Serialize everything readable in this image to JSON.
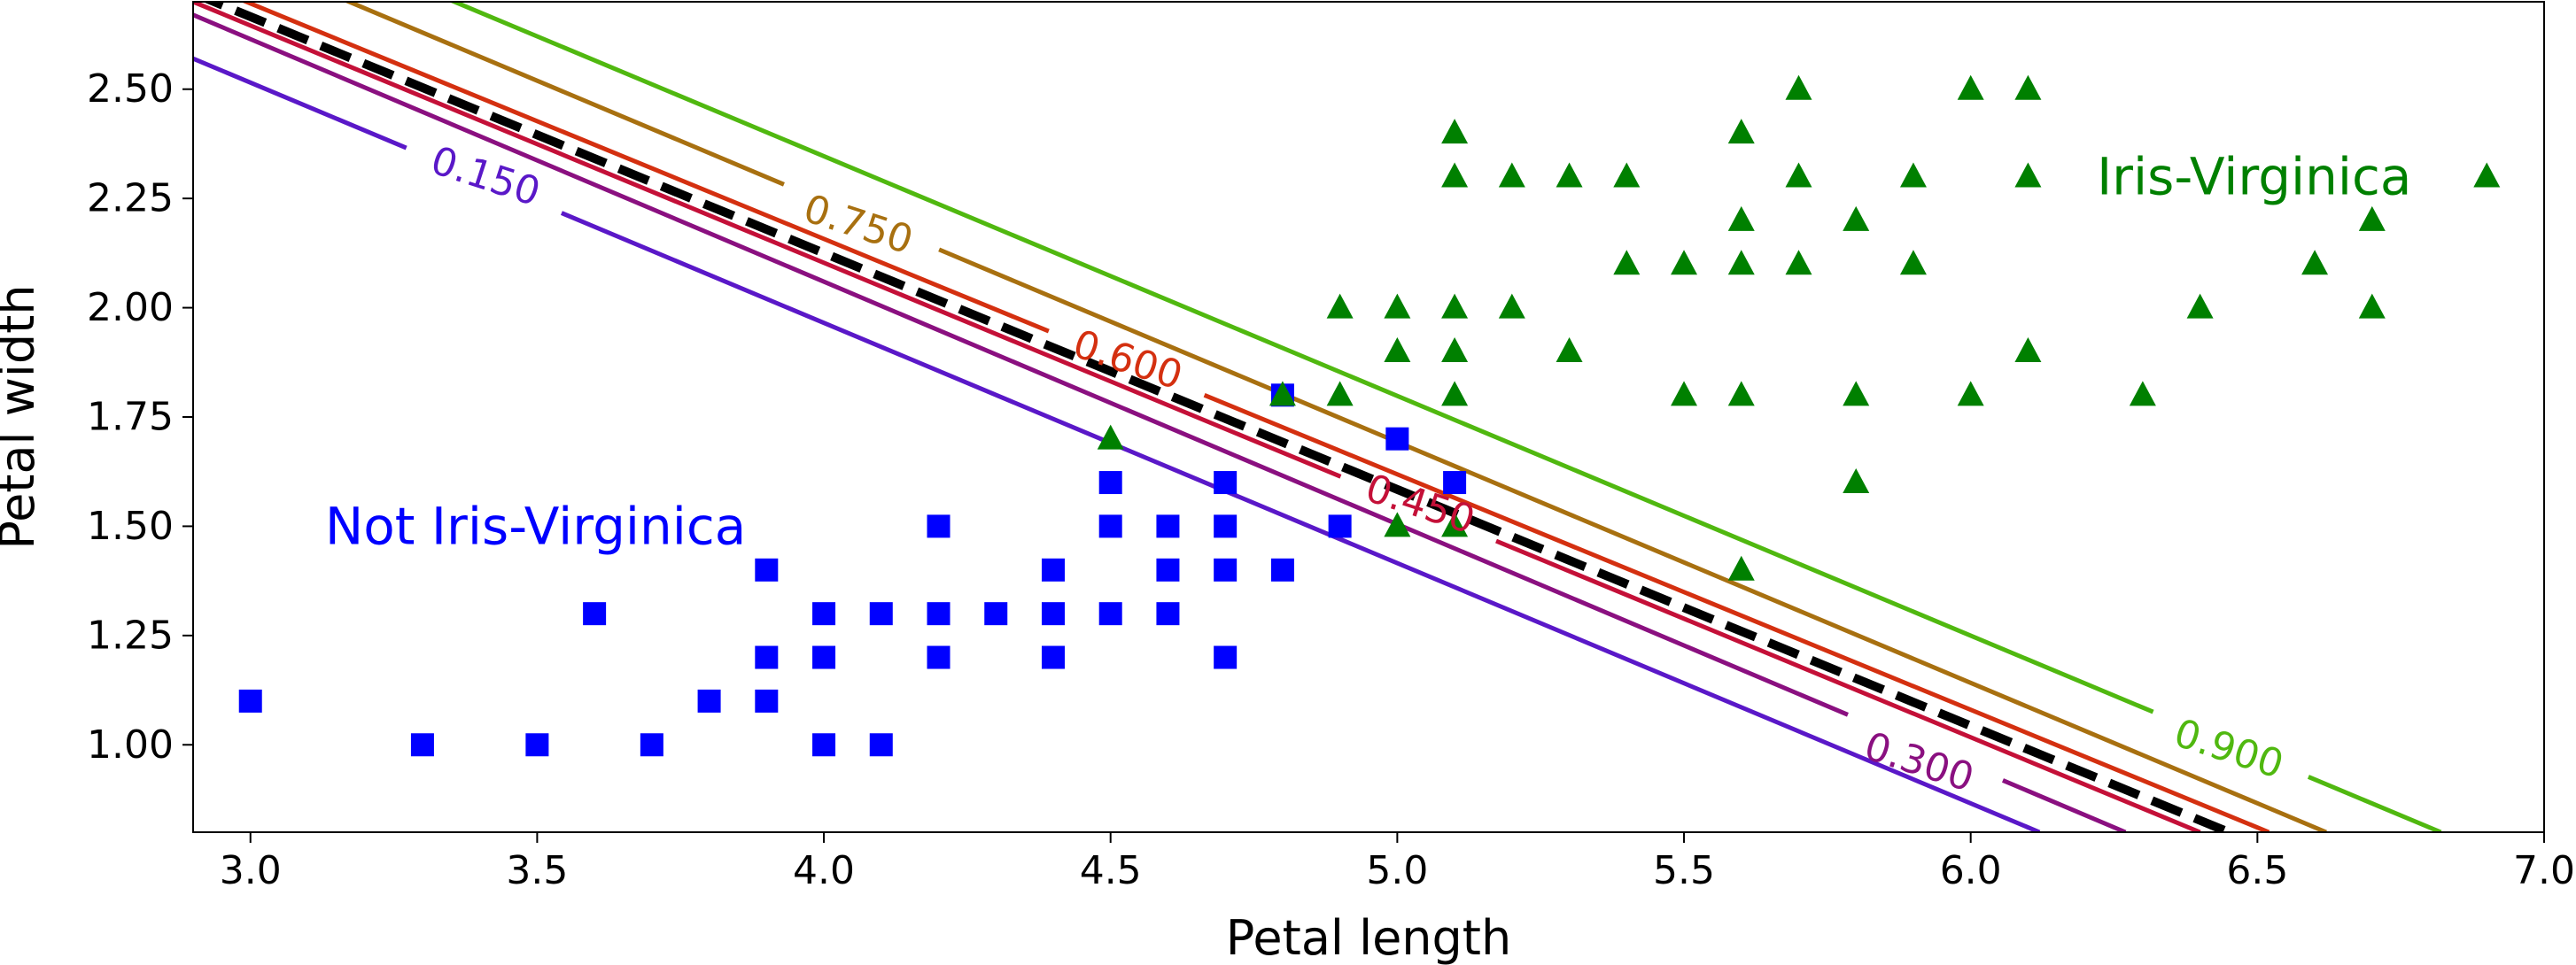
{
  "chart_data": {
    "type": "scatter",
    "title": "",
    "xlabel": "Petal length",
    "ylabel": "Petal width",
    "xlim": [
      2.9,
      7.0
    ],
    "ylim": [
      0.8,
      2.7
    ],
    "x_ticks": [
      "3.0",
      "3.5",
      "4.0",
      "4.5",
      "5.0",
      "5.5",
      "6.0",
      "6.5",
      "7.0"
    ],
    "y_ticks": [
      "1.00",
      "1.25",
      "1.50",
      "1.75",
      "2.00",
      "2.25",
      "2.50"
    ],
    "decision_boundary": {
      "label": "",
      "style": "dashed",
      "color": "#000000",
      "p": 0.5,
      "points": [
        [
          2.9,
          2.72
        ],
        [
          6.45,
          0.8
        ]
      ]
    },
    "contours": [
      {
        "label": "0.150",
        "color": "#5a18c8",
        "points": [
          [
            2.9,
            2.57
          ],
          [
            6.12,
            0.8
          ]
        ],
        "label_at": [
          3.41,
          2.3
        ],
        "label_angle": 18
      },
      {
        "label": "0.300",
        "color": "#8a1080",
        "points": [
          [
            2.9,
            2.67
          ],
          [
            6.27,
            0.8
          ]
        ],
        "label_at": [
          5.91,
          0.96
        ],
        "label_angle": 18
      },
      {
        "label": "0.450",
        "color": "#c41038",
        "points": [
          [
            2.9,
            2.7
          ],
          [
            6.4,
            0.8
          ]
        ],
        "label_at": [
          5.04,
          1.55
        ],
        "label_angle": 18
      },
      {
        "label": "0.600",
        "color": "#d43010",
        "points": [
          [
            2.9,
            2.75
          ],
          [
            6.52,
            0.8
          ]
        ],
        "label_at": [
          4.53,
          1.88
        ],
        "label_angle": 18
      },
      {
        "label": "0.750",
        "color": "#a87010",
        "points": [
          [
            2.9,
            2.85
          ],
          [
            6.62,
            0.8
          ]
        ],
        "label_at": [
          4.06,
          2.19
        ],
        "label_angle": 18
      },
      {
        "label": "0.900",
        "color": "#50b810",
        "points": [
          [
            2.9,
            2.95
          ],
          [
            6.82,
            0.8
          ]
        ],
        "label_at": [
          6.45,
          0.99
        ],
        "label_angle": 18
      }
    ],
    "series": [
      {
        "name": "Not Iris-Virginica",
        "marker": "square",
        "color": "#0000ff",
        "points": [
          [
            3.0,
            1.1
          ],
          [
            3.3,
            1.0
          ],
          [
            3.5,
            1.0
          ],
          [
            3.6,
            1.3
          ],
          [
            3.7,
            1.0
          ],
          [
            3.8,
            1.1
          ],
          [
            3.9,
            1.4
          ],
          [
            3.9,
            1.2
          ],
          [
            3.9,
            1.1
          ],
          [
            4.0,
            1.3
          ],
          [
            4.0,
            1.2
          ],
          [
            4.0,
            1.0
          ],
          [
            4.1,
            1.3
          ],
          [
            4.1,
            1.0
          ],
          [
            4.2,
            1.5
          ],
          [
            4.2,
            1.3
          ],
          [
            4.2,
            1.2
          ],
          [
            4.3,
            1.3
          ],
          [
            4.4,
            1.4
          ],
          [
            4.4,
            1.3
          ],
          [
            4.4,
            1.2
          ],
          [
            4.5,
            1.6
          ],
          [
            4.5,
            1.5
          ],
          [
            4.5,
            1.3
          ],
          [
            4.6,
            1.5
          ],
          [
            4.6,
            1.4
          ],
          [
            4.6,
            1.3
          ],
          [
            4.7,
            1.6
          ],
          [
            4.7,
            1.5
          ],
          [
            4.7,
            1.4
          ],
          [
            4.7,
            1.2
          ],
          [
            4.8,
            1.8
          ],
          [
            4.8,
            1.4
          ],
          [
            4.9,
            1.5
          ],
          [
            5.0,
            1.7
          ],
          [
            5.1,
            1.6
          ]
        ]
      },
      {
        "name": "Iris-Virginica",
        "marker": "triangle",
        "color": "#008000",
        "points": [
          [
            4.5,
            1.7
          ],
          [
            4.8,
            1.8
          ],
          [
            4.9,
            2.0
          ],
          [
            4.9,
            1.8
          ],
          [
            5.0,
            2.0
          ],
          [
            5.0,
            1.9
          ],
          [
            5.0,
            1.5
          ],
          [
            5.1,
            2.4
          ],
          [
            5.1,
            2.3
          ],
          [
            5.1,
            2.0
          ],
          [
            5.1,
            1.9
          ],
          [
            5.1,
            1.8
          ],
          [
            5.1,
            1.5
          ],
          [
            5.2,
            2.3
          ],
          [
            5.2,
            2.0
          ],
          [
            5.3,
            2.3
          ],
          [
            5.3,
            1.9
          ],
          [
            5.4,
            2.3
          ],
          [
            5.4,
            2.1
          ],
          [
            5.5,
            2.1
          ],
          [
            5.5,
            1.8
          ],
          [
            5.6,
            2.4
          ],
          [
            5.6,
            2.2
          ],
          [
            5.6,
            2.1
          ],
          [
            5.6,
            1.8
          ],
          [
            5.6,
            1.4
          ],
          [
            5.7,
            2.5
          ],
          [
            5.7,
            2.3
          ],
          [
            5.7,
            2.1
          ],
          [
            5.8,
            2.2
          ],
          [
            5.8,
            1.8
          ],
          [
            5.8,
            1.6
          ],
          [
            5.9,
            2.3
          ],
          [
            5.9,
            2.1
          ],
          [
            6.0,
            2.5
          ],
          [
            6.0,
            1.8
          ],
          [
            6.1,
            2.5
          ],
          [
            6.1,
            2.3
          ],
          [
            6.1,
            1.9
          ],
          [
            6.3,
            1.8
          ],
          [
            6.4,
            2.0
          ],
          [
            6.6,
            2.1
          ],
          [
            6.7,
            2.2
          ],
          [
            6.7,
            2.0
          ],
          [
            6.9,
            2.3
          ]
        ]
      }
    ],
    "annotations": [
      {
        "text": "Not Iris-Virginica",
        "x": 3.13,
        "y": 1.5,
        "color": "#0000ff"
      },
      {
        "text": "Iris-Virginica",
        "x": 6.22,
        "y": 2.3,
        "color": "#008000"
      }
    ]
  }
}
